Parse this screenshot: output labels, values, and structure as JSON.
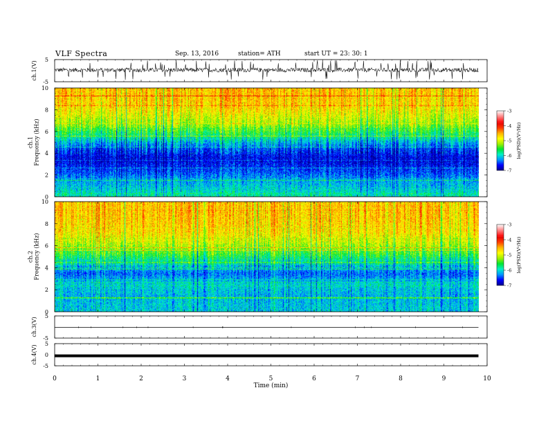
{
  "header": {
    "title": "VLF  Spectra",
    "date": "Sep. 13, 2016",
    "station": "station= ATH",
    "start": "start  UT  =   23: 30: 1"
  },
  "colors": {
    "spectrum_stops": [
      "#00008c",
      "#0000ff",
      "#0096ff",
      "#00f0c8",
      "#00e632",
      "#a0f000",
      "#ffff00",
      "#ffb400",
      "#ff3c00",
      "#e60000"
    ],
    "colorbar_above_max": [
      "#ff0000",
      "#ffffff"
    ],
    "waveform": "#000000"
  },
  "chart_data": [
    {
      "type": "line",
      "name": "ch.1 waveform",
      "ylabel": "ch.1(V)",
      "ylim": [
        -5,
        5
      ],
      "y_tick_labels": [
        "5",
        "-5"
      ],
      "baseline_v": 0.3,
      "noise_amplitude_v": 1.2,
      "spike_amplitude_v": 4.5,
      "x_range_min": [
        0,
        9.8
      ]
    },
    {
      "type": "heatmap",
      "name": "ch.1 spectrogram",
      "ylabel": "ch.1\nFrequency  (kHz)",
      "ylim_khz": [
        0,
        10
      ],
      "y_ticks": [
        0,
        2,
        4,
        6,
        8,
        10
      ],
      "x_range_min": [
        0,
        9.8
      ],
      "log_psd_profile": [
        {
          "f_khz": 0.2,
          "log_psd": -5.6
        },
        {
          "f_khz": 1.5,
          "log_psd": -6.0
        },
        {
          "f_khz": 2.5,
          "log_psd": -6.4
        },
        {
          "f_khz": 3.5,
          "log_psd": -6.7
        },
        {
          "f_khz": 4.5,
          "log_psd": -6.3
        },
        {
          "f_khz": 5.5,
          "log_psd": -5.5
        },
        {
          "f_khz": 6.5,
          "log_psd": -4.8
        },
        {
          "f_khz": 7.5,
          "log_psd": -4.4
        },
        {
          "f_khz": 8.5,
          "log_psd": -4.1
        },
        {
          "f_khz": 9.5,
          "log_psd": -4.0
        }
      ],
      "colorbar": {
        "label": "log(PSD)(V²/Hz)",
        "range": [
          -7,
          -3
        ],
        "ticks": [
          -3,
          -4,
          -5,
          -6,
          -7
        ]
      }
    },
    {
      "type": "heatmap",
      "name": "ch.2 spectrogram",
      "ylabel": "ch.2\nFrequency  (kHz)",
      "ylim_khz": [
        0,
        10
      ],
      "y_ticks": [
        0,
        2,
        4,
        6,
        8,
        10
      ],
      "x_range_min": [
        0,
        9.8
      ],
      "log_psd_profile": [
        {
          "f_khz": 0.5,
          "log_psd": -5.8
        },
        {
          "f_khz": 1.5,
          "log_psd": -5.9
        },
        {
          "f_khz": 2.5,
          "log_psd": -5.7
        },
        {
          "f_khz": 3.5,
          "log_psd": -6.2
        },
        {
          "f_khz": 4.5,
          "log_psd": -5.6
        },
        {
          "f_khz": 5.5,
          "log_psd": -4.9
        },
        {
          "f_khz": 6.5,
          "log_psd": -4.4
        },
        {
          "f_khz": 7.5,
          "log_psd": -4.1
        },
        {
          "f_khz": 8.5,
          "log_psd": -4.0
        },
        {
          "f_khz": 9.5,
          "log_psd": -4.0
        }
      ],
      "colorbar": {
        "label": "log(PSD)(V²/Hz)",
        "range": [
          -7,
          -3
        ],
        "ticks": [
          -3,
          -4,
          -5,
          -6,
          -7
        ]
      }
    },
    {
      "type": "line",
      "name": "ch.3 waveform",
      "ylabel": "ch.3(V)",
      "ylim": [
        -5,
        5
      ],
      "y_tick_labels": [
        "5",
        "-5"
      ],
      "baseline_v": -0.2,
      "x_range_min": [
        0,
        9.8
      ]
    },
    {
      "type": "line",
      "name": "ch.4 waveform",
      "ylabel": "ch.4(V)",
      "ylim": [
        -5,
        5
      ],
      "y_tick_labels": [
        "5",
        "0",
        "-5"
      ],
      "baseline_v": -0.5,
      "x_range_min": [
        0,
        9.8
      ]
    }
  ],
  "time_axis": {
    "label": "Time  (min)",
    "range": [
      0,
      10
    ],
    "ticks": [
      0,
      1,
      2,
      3,
      4,
      5,
      6,
      7,
      8,
      9,
      10
    ]
  }
}
